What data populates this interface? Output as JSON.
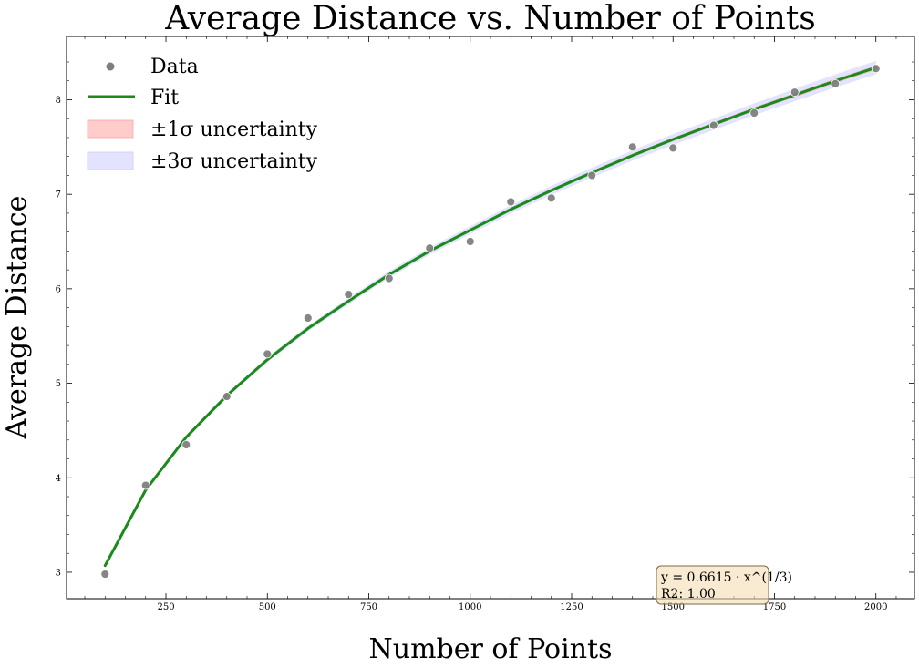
{
  "chart_data": {
    "type": "scatter",
    "title": "Average Distance vs. Number of Points",
    "xlabel": "Number of Points",
    "ylabel": "Average Distance",
    "xlim": [
      5,
      2095
    ],
    "ylim": [
      2.72,
      8.67
    ],
    "xticks": [
      250,
      500,
      750,
      1000,
      1250,
      1500,
      1750,
      2000
    ],
    "xtick_labels": [
      "250",
      "500",
      "750",
      "1000",
      "1250",
      "1500",
      "1750",
      "2000"
    ],
    "yticks": [
      3,
      4,
      5,
      6,
      7,
      8
    ],
    "ytick_labels": [
      "3",
      "4",
      "5",
      "6",
      "7",
      "8"
    ],
    "grid": false,
    "legend_position": "upper-left",
    "series": [
      {
        "name": "Data",
        "kind": "scatter",
        "color": "#7f7f7f",
        "x": [
          100,
          200,
          300,
          400,
          500,
          600,
          700,
          800,
          900,
          1000,
          1100,
          1200,
          1300,
          1400,
          1500,
          1600,
          1700,
          1800,
          1900,
          2000
        ],
        "y": [
          2.98,
          3.92,
          4.35,
          4.86,
          5.31,
          5.69,
          5.94,
          6.11,
          6.43,
          6.5,
          6.92,
          6.96,
          7.2,
          7.5,
          7.49,
          7.73,
          7.86,
          8.08,
          8.17,
          8.33
        ]
      },
      {
        "name": "Fit",
        "kind": "line",
        "color": "#1a8a1a",
        "x": [
          100,
          200,
          300,
          400,
          500,
          600,
          700,
          800,
          900,
          1000,
          1100,
          1200,
          1300,
          1400,
          1500,
          1600,
          1700,
          1800,
          1900,
          2000
        ],
        "y": [
          3.07,
          3.87,
          4.43,
          4.87,
          5.25,
          5.58,
          5.87,
          6.15,
          6.4,
          6.62,
          6.84,
          7.04,
          7.23,
          7.41,
          7.58,
          7.74,
          7.9,
          8.05,
          8.2,
          8.34
        ]
      }
    ],
    "bands": [
      {
        "name": "±1σ uncertainty",
        "sigma": 1,
        "color": "#ff9999",
        "half_width": [
          0.005,
          0.006,
          0.007,
          0.008,
          0.009,
          0.01,
          0.011,
          0.012,
          0.013,
          0.014,
          0.015,
          0.016,
          0.017,
          0.018,
          0.019,
          0.02,
          0.021,
          0.022,
          0.023,
          0.024
        ]
      },
      {
        "name": "±3σ uncertainty",
        "sigma": 3,
        "color": "#ccccff",
        "half_width": [
          0.015,
          0.018,
          0.021,
          0.024,
          0.027,
          0.03,
          0.033,
          0.036,
          0.039,
          0.042,
          0.045,
          0.048,
          0.051,
          0.054,
          0.057,
          0.06,
          0.063,
          0.066,
          0.069,
          0.072
        ]
      }
    ],
    "legend": [
      {
        "key": "data",
        "label": "Data"
      },
      {
        "key": "fit",
        "label": "Fit"
      },
      {
        "key": "band1",
        "label": "±1σ uncertainty"
      },
      {
        "key": "band3",
        "label": "±3σ uncertainty"
      }
    ],
    "annotation": {
      "lines": [
        "y = 0.6615 · x^(1/3)",
        "R2: 1.00"
      ],
      "box_color": "#f5deb3"
    }
  }
}
